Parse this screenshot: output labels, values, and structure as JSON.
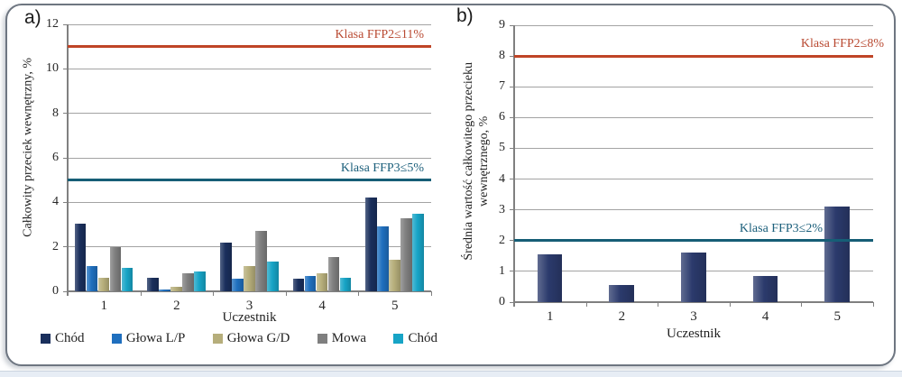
{
  "figure": {
    "panel_a_label": "a)",
    "panel_b_label": "b)"
  },
  "chart_data": [
    {
      "type": "bar",
      "panel": "a",
      "xlabel": "Uczestnik",
      "ylabel": "Całkowity przeciek wewnętrzny, %",
      "ylim": [
        0,
        12
      ],
      "ytick_step": 2,
      "grid": true,
      "legend_position": "bottom",
      "categories": [
        "1",
        "2",
        "3",
        "4",
        "5"
      ],
      "series": [
        {
          "name": "Chód",
          "color": "#1a2f5c",
          "values": [
            3.05,
            0.6,
            2.2,
            0.55,
            4.2
          ]
        },
        {
          "name": "Głowa L/P",
          "color": "#1f6fbe",
          "values": [
            1.15,
            0.1,
            0.55,
            0.7,
            2.9
          ]
        },
        {
          "name": "Głowa G/D",
          "color": "#b6ae7b",
          "values": [
            0.6,
            0.2,
            1.15,
            0.8,
            1.4
          ]
        },
        {
          "name": "Mowa",
          "color": "#7f7f7f",
          "values": [
            2.0,
            0.8,
            2.7,
            1.55,
            3.3
          ]
        },
        {
          "name": "Chód",
          "color": "#17a4c6",
          "values": [
            1.05,
            0.9,
            1.35,
            0.6,
            3.5
          ]
        }
      ],
      "ref_lines": [
        {
          "label": "Klasa FFP2≤11%",
          "value": 11,
          "color": "#bf4426",
          "label_color": "#b94a32"
        },
        {
          "label": "Klasa FFP3≤5%",
          "value": 5,
          "color": "#165e76",
          "label_color": "#1b5f7b"
        }
      ]
    },
    {
      "type": "bar",
      "panel": "b",
      "xlabel": "Uczestnik",
      "ylabel": "Średnia wartość całkowitego przecieku\nwewnętrznego, %",
      "ylim": [
        0,
        9
      ],
      "ytick_step": 1,
      "grid": true,
      "legend_position": "none",
      "categories": [
        "1",
        "2",
        "3",
        "4",
        "5"
      ],
      "series": [
        {
          "name": "Średnia wartość",
          "color": "#2b3a6c",
          "values": [
            1.55,
            0.55,
            1.6,
            0.85,
            3.1
          ]
        }
      ],
      "ref_lines": [
        {
          "label": "Klasa FFP2≤8%",
          "value": 8,
          "color": "#bf4426",
          "label_color": "#b94a32"
        },
        {
          "label": "Klasa FFP3≤2%",
          "value": 2,
          "color": "#165e76",
          "label_color": "#1b5f7b"
        }
      ]
    }
  ]
}
